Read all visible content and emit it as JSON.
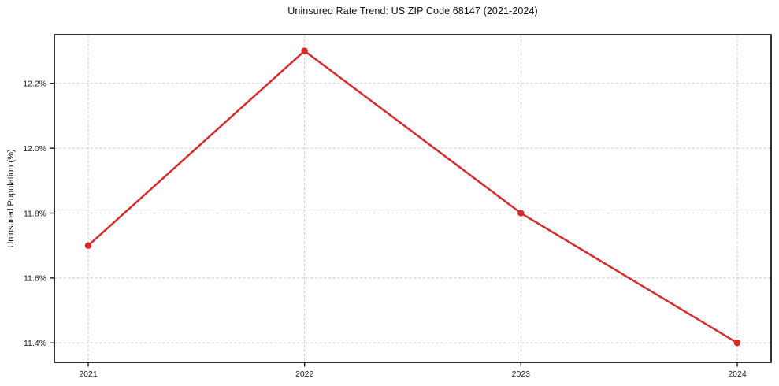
{
  "chart_data": {
    "type": "line",
    "title": "Uninsured Rate Trend: US ZIP Code 68147 (2021-2024)",
    "xlabel": "",
    "ylabel": "Uninsured Population (%)",
    "x": [
      2021,
      2022,
      2023,
      2024
    ],
    "xtick_labels": [
      "2021",
      "2022",
      "2023",
      "2024"
    ],
    "series": [
      {
        "name": "uninsured-rate",
        "values": [
          11.7,
          12.3,
          11.8,
          11.4
        ],
        "color": "#d62b2b"
      }
    ],
    "yticks": [
      11.4,
      11.6,
      11.8,
      12.0,
      12.2
    ],
    "ytick_labels": [
      "11.4%",
      "11.6%",
      "11.8%",
      "12.0%",
      "12.2%"
    ],
    "ylim": [
      11.34,
      12.35
    ],
    "grid": true,
    "grid_on": "both",
    "grid_style": "dashed",
    "grid_color": "#cccccc",
    "axis_color": "#000000",
    "tick_label_color": "#1a1a1a",
    "legend_position": "none",
    "background_color": "#ffffff"
  }
}
